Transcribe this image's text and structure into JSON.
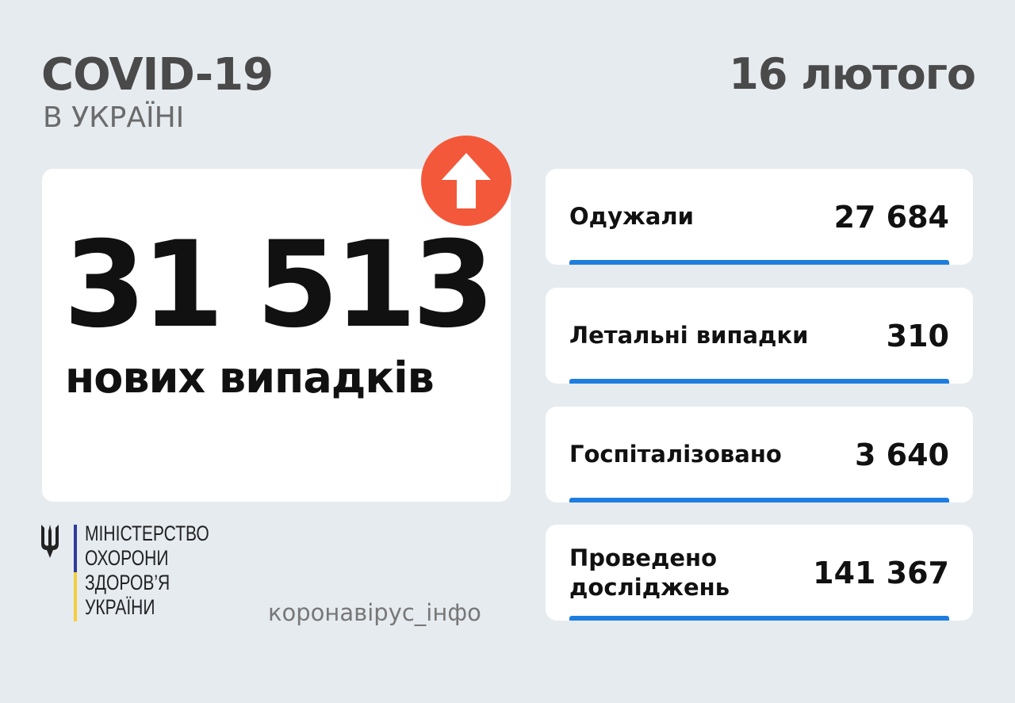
{
  "header": {
    "title": "COVID-19",
    "subtitle": "В УКРАЇНІ",
    "date": "16 лютого"
  },
  "main": {
    "value": "31 513",
    "label": "нових випадків",
    "trend_icon": "arrow-up-icon",
    "trend_color": "#f4583a"
  },
  "stats": [
    {
      "label": "Одужали",
      "value": "27 684"
    },
    {
      "label": "Летальні випадки",
      "value": "310"
    },
    {
      "label": "Госпіталізовано",
      "value": "3 640"
    },
    {
      "label": "Проведено досліджень",
      "value": "141 367"
    }
  ],
  "footer": {
    "ministry": [
      "МІНІСТЕРСТВО",
      "ОХОРОНИ",
      "ЗДОРОВ’Я",
      "УКРАЇНИ"
    ],
    "site": "коронавірус_інфо"
  },
  "colors": {
    "accent": "#1e7ee0",
    "background": "#e6ebf0"
  }
}
